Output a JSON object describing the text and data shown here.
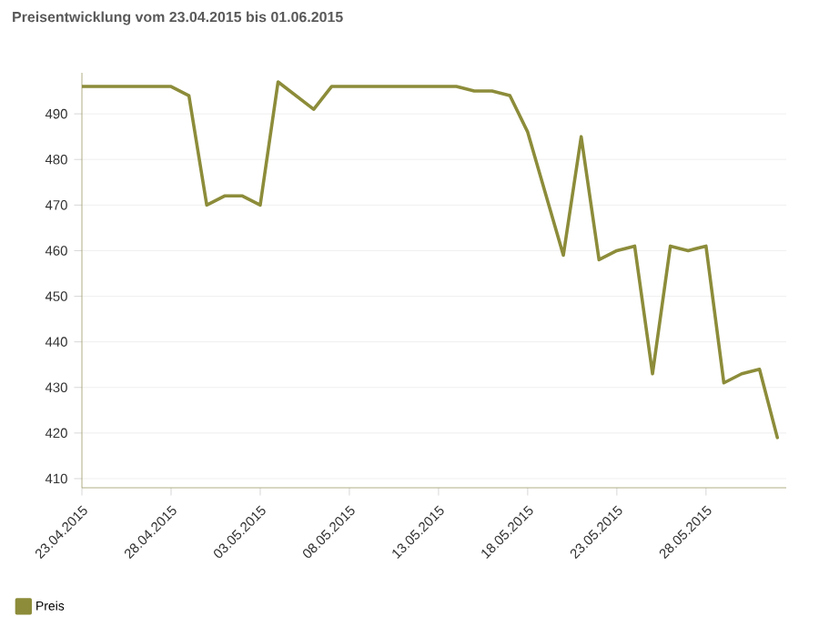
{
  "chart_data": {
    "type": "line",
    "title": "Preisentwicklung vom 23.04.2015 bis 01.06.2015",
    "x": [
      "2015-04-23",
      "2015-04-28",
      "2015-04-29",
      "2015-04-30",
      "2015-05-01",
      "2015-05-02",
      "2015-05-03",
      "2015-05-04",
      "2015-05-06",
      "2015-05-07",
      "2015-05-14",
      "2015-05-15",
      "2015-05-16",
      "2015-05-17",
      "2015-05-18",
      "2015-05-20",
      "2015-05-21",
      "2015-05-22",
      "2015-05-23",
      "2015-05-24",
      "2015-05-25",
      "2015-05-26",
      "2015-05-27",
      "2015-05-28",
      "2015-05-29",
      "2015-05-30",
      "2015-05-31",
      "2015-06-01"
    ],
    "series": [
      {
        "name": "Preis",
        "color": "#8c8c3a",
        "values": [
          496,
          496,
          494,
          470,
          472,
          472,
          470,
          497,
          491,
          496,
          496,
          495,
          495,
          494,
          486,
          459,
          485,
          458,
          460,
          461,
          433,
          461,
          460,
          461,
          431,
          433,
          434,
          419
        ]
      }
    ],
    "xlim": [
      "2015-04-23",
      "2015-06-01T12:00"
    ],
    "xticks": [
      {
        "value": "2015-04-23",
        "label": "23.04.2015"
      },
      {
        "value": "2015-04-28",
        "label": "28.04.2015"
      },
      {
        "value": "2015-05-03",
        "label": "03.05.2015"
      },
      {
        "value": "2015-05-08",
        "label": "08.05.2015"
      },
      {
        "value": "2015-05-13",
        "label": "13.05.2015"
      },
      {
        "value": "2015-05-18",
        "label": "18.05.2015"
      },
      {
        "value": "2015-05-23",
        "label": "23.05.2015"
      },
      {
        "value": "2015-05-28",
        "label": "28.05.2015"
      }
    ],
    "ylim": [
      408,
      499
    ],
    "yticks": [
      410,
      420,
      430,
      440,
      450,
      460,
      470,
      480,
      490
    ],
    "grid": "y",
    "legend": "bottom left",
    "marker": "none",
    "line_style": "solid"
  }
}
